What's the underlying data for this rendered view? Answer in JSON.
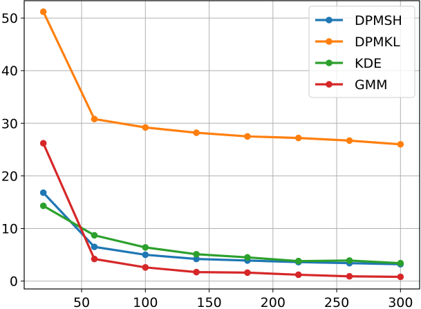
{
  "chart_data": {
    "type": "line",
    "title": "",
    "xlabel": "",
    "ylabel": "",
    "x": [
      20,
      60,
      100,
      140,
      180,
      220,
      260,
      300
    ],
    "xlim": [
      5,
      315
    ],
    "ylim": [
      -1.5,
      53.3
    ],
    "xticks": [
      50,
      100,
      150,
      200,
      250,
      300
    ],
    "yticks": [
      0,
      10,
      20,
      30,
      40,
      50
    ],
    "grid": true,
    "legend_position": "top-right",
    "series": [
      {
        "name": "DPMSH",
        "color": "#1f77b4",
        "values": [
          16.8,
          6.5,
          5.0,
          4.2,
          3.9,
          3.6,
          3.4,
          3.2
        ]
      },
      {
        "name": "DPMKL",
        "color": "#ff7f0e",
        "values": [
          51.2,
          30.8,
          29.2,
          28.2,
          27.5,
          27.2,
          26.7,
          26.0
        ]
      },
      {
        "name": "KDE",
        "color": "#2ca02c",
        "values": [
          14.3,
          8.7,
          6.4,
          5.1,
          4.5,
          3.8,
          3.9,
          3.4
        ]
      },
      {
        "name": "GMM",
        "color": "#d62728",
        "values": [
          26.2,
          4.2,
          2.6,
          1.7,
          1.6,
          1.2,
          0.9,
          0.8
        ]
      }
    ]
  }
}
